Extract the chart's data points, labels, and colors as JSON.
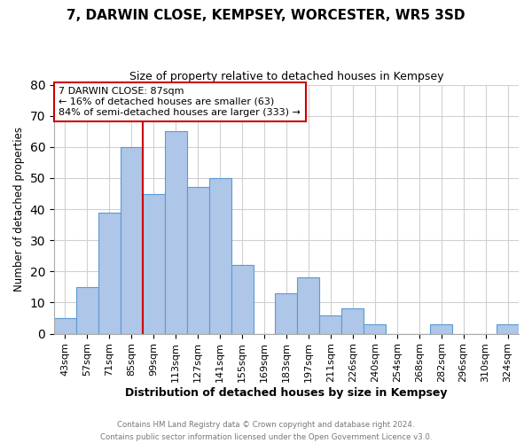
{
  "title": "7, DARWIN CLOSE, KEMPSEY, WORCESTER, WR5 3SD",
  "subtitle": "Size of property relative to detached houses in Kempsey",
  "xlabel": "Distribution of detached houses by size in Kempsey",
  "ylabel": "Number of detached properties",
  "bin_labels": [
    "43sqm",
    "57sqm",
    "71sqm",
    "85sqm",
    "99sqm",
    "113sqm",
    "127sqm",
    "141sqm",
    "155sqm",
    "169sqm",
    "183sqm",
    "197sqm",
    "211sqm",
    "226sqm",
    "240sqm",
    "254sqm",
    "268sqm",
    "282sqm",
    "296sqm",
    "310sqm",
    "324sqm"
  ],
  "bar_heights": [
    5,
    15,
    39,
    60,
    45,
    65,
    47,
    50,
    22,
    0,
    13,
    18,
    6,
    8,
    3,
    0,
    0,
    3,
    0,
    0,
    3
  ],
  "bar_color": "#aec6e8",
  "bar_edge_color": "#5b9bd5",
  "vline_color": "#cc0000",
  "vline_index": 3.5,
  "ylim": [
    0,
    80
  ],
  "yticks": [
    0,
    10,
    20,
    30,
    40,
    50,
    60,
    70,
    80
  ],
  "annotation_line1": "7 DARWIN CLOSE: 87sqm",
  "annotation_line2": "← 16% of detached houses are smaller (63)",
  "annotation_line3": "84% of semi-detached houses are larger (333) →",
  "annotation_box_color": "#ffffff",
  "annotation_box_edge_color": "#cc0000",
  "footer_line1": "Contains HM Land Registry data © Crown copyright and database right 2024.",
  "footer_line2": "Contains public sector information licensed under the Open Government Licence v3.0.",
  "background_color": "#ffffff",
  "grid_color": "#d0d0d0"
}
